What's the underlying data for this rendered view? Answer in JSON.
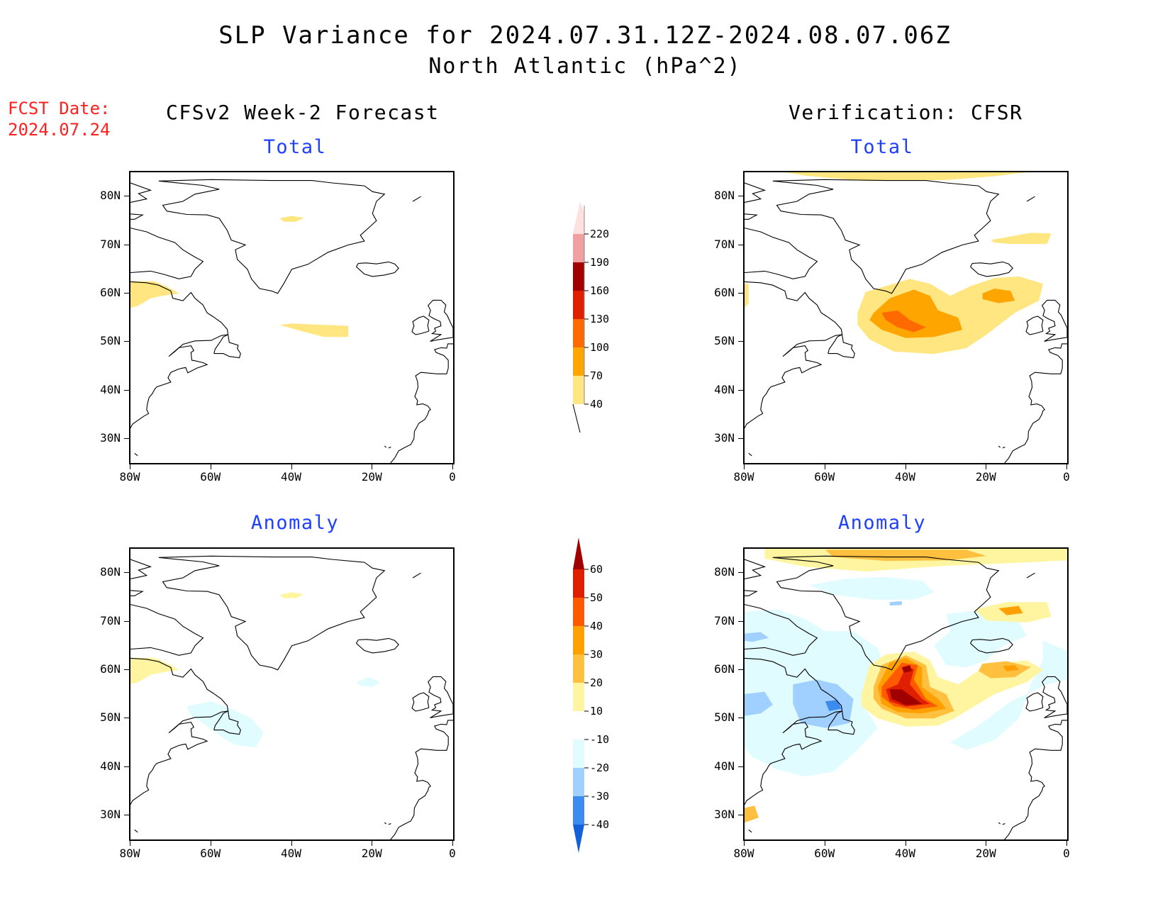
{
  "header": {
    "title": "SLP Variance for 2024.07.31.12Z-2024.08.07.06Z",
    "subtitle": "North Atlantic (hPa^2)",
    "fcst_label": "FCST Date:",
    "fcst_date": "2024.07.24"
  },
  "columns": {
    "left_title": "CFSv2 Week-2 Forecast",
    "right_title": "Verification: CFSR"
  },
  "panels": {
    "total_label": "Total",
    "anomaly_label": "Anomaly"
  },
  "axes": {
    "lat_ticks": [
      "80N",
      "70N",
      "60N",
      "50N",
      "40N",
      "30N"
    ],
    "lon_ticks": [
      "80W",
      "60W",
      "40W",
      "20W",
      "0"
    ],
    "lat_range": [
      25,
      85
    ],
    "lon_range": [
      -80,
      0
    ]
  },
  "colorbar_total": {
    "levels": [
      "40",
      "70",
      "100",
      "130",
      "160",
      "190",
      "220"
    ],
    "colors": [
      "#ffe680",
      "#ffa500",
      "#ff6a00",
      "#e01e00",
      "#a00000",
      "#f0a0a0",
      "#fde0e0"
    ]
  },
  "colorbar_anomaly": {
    "levels": [
      "60",
      "50",
      "40",
      "30",
      "20",
      "10",
      "-10",
      "-20",
      "-30",
      "-40"
    ],
    "colors": {
      "gt60": "#a00000",
      "50_60": "#e01e00",
      "40_50": "#ff5a00",
      "30_40": "#ffa000",
      "20_30": "#ffc040",
      "10_20": "#fff5a0",
      "neutral": "#ffffff",
      "m20_m10": "#e0fcff",
      "m30_m20": "#a0d0ff",
      "m40_m30": "#3c8cf0",
      "lt_m40": "#1460d8"
    }
  },
  "chart_data": {
    "type": "map",
    "region": "North Atlantic",
    "variable": "SLP Variance (hPa^2)",
    "panels": [
      {
        "name": "CFSv2 Week-2 Forecast Total",
        "features": [
          {
            "lat": 75,
            "lon": -40,
            "level": "40-70"
          },
          {
            "lat": 52.5,
            "lon": -32,
            "level": "40-70"
          },
          {
            "lat": 60,
            "lon": -75,
            "level": "40-70"
          }
        ]
      },
      {
        "name": "Verification CFSR Total",
        "features": [
          {
            "lat": 54,
            "lon": -38,
            "level": "70-130",
            "peak": "100-130"
          },
          {
            "lat": 59,
            "lon": -17,
            "level": "70-100"
          },
          {
            "lat": 71,
            "lon": -14,
            "level": "40-70"
          },
          {
            "lat": 84,
            "lon": -30,
            "level": "40-70"
          }
        ]
      },
      {
        "name": "CFSv2 Week-2 Forecast Anomaly",
        "features": [
          {
            "lat": 75,
            "lon": -40,
            "level": "10-20"
          },
          {
            "lat": 60,
            "lon": -75,
            "level": "10-20"
          },
          {
            "lat": 57,
            "lon": -20,
            "level": "-20--10"
          },
          {
            "lat": 48,
            "lon": -55,
            "level": "-20--10"
          }
        ]
      },
      {
        "name": "Verification CFSR Anomaly",
        "features": [
          {
            "lat": 54,
            "lon": -42,
            "level": ">60"
          },
          {
            "lat": 60,
            "lon": -40,
            "level": "50-60"
          },
          {
            "lat": 60,
            "lon": -15,
            "level": "30-40"
          },
          {
            "lat": 72,
            "lon": -15,
            "level": "30-40"
          },
          {
            "lat": 83,
            "lon": -35,
            "level": "20-30"
          },
          {
            "lat": 52,
            "lon": -60,
            "level": "-40--30"
          },
          {
            "lat": 52,
            "lon": -75,
            "level": "-30--20"
          },
          {
            "lat": 74,
            "lon": -45,
            "level": "-30--20"
          }
        ]
      }
    ]
  }
}
